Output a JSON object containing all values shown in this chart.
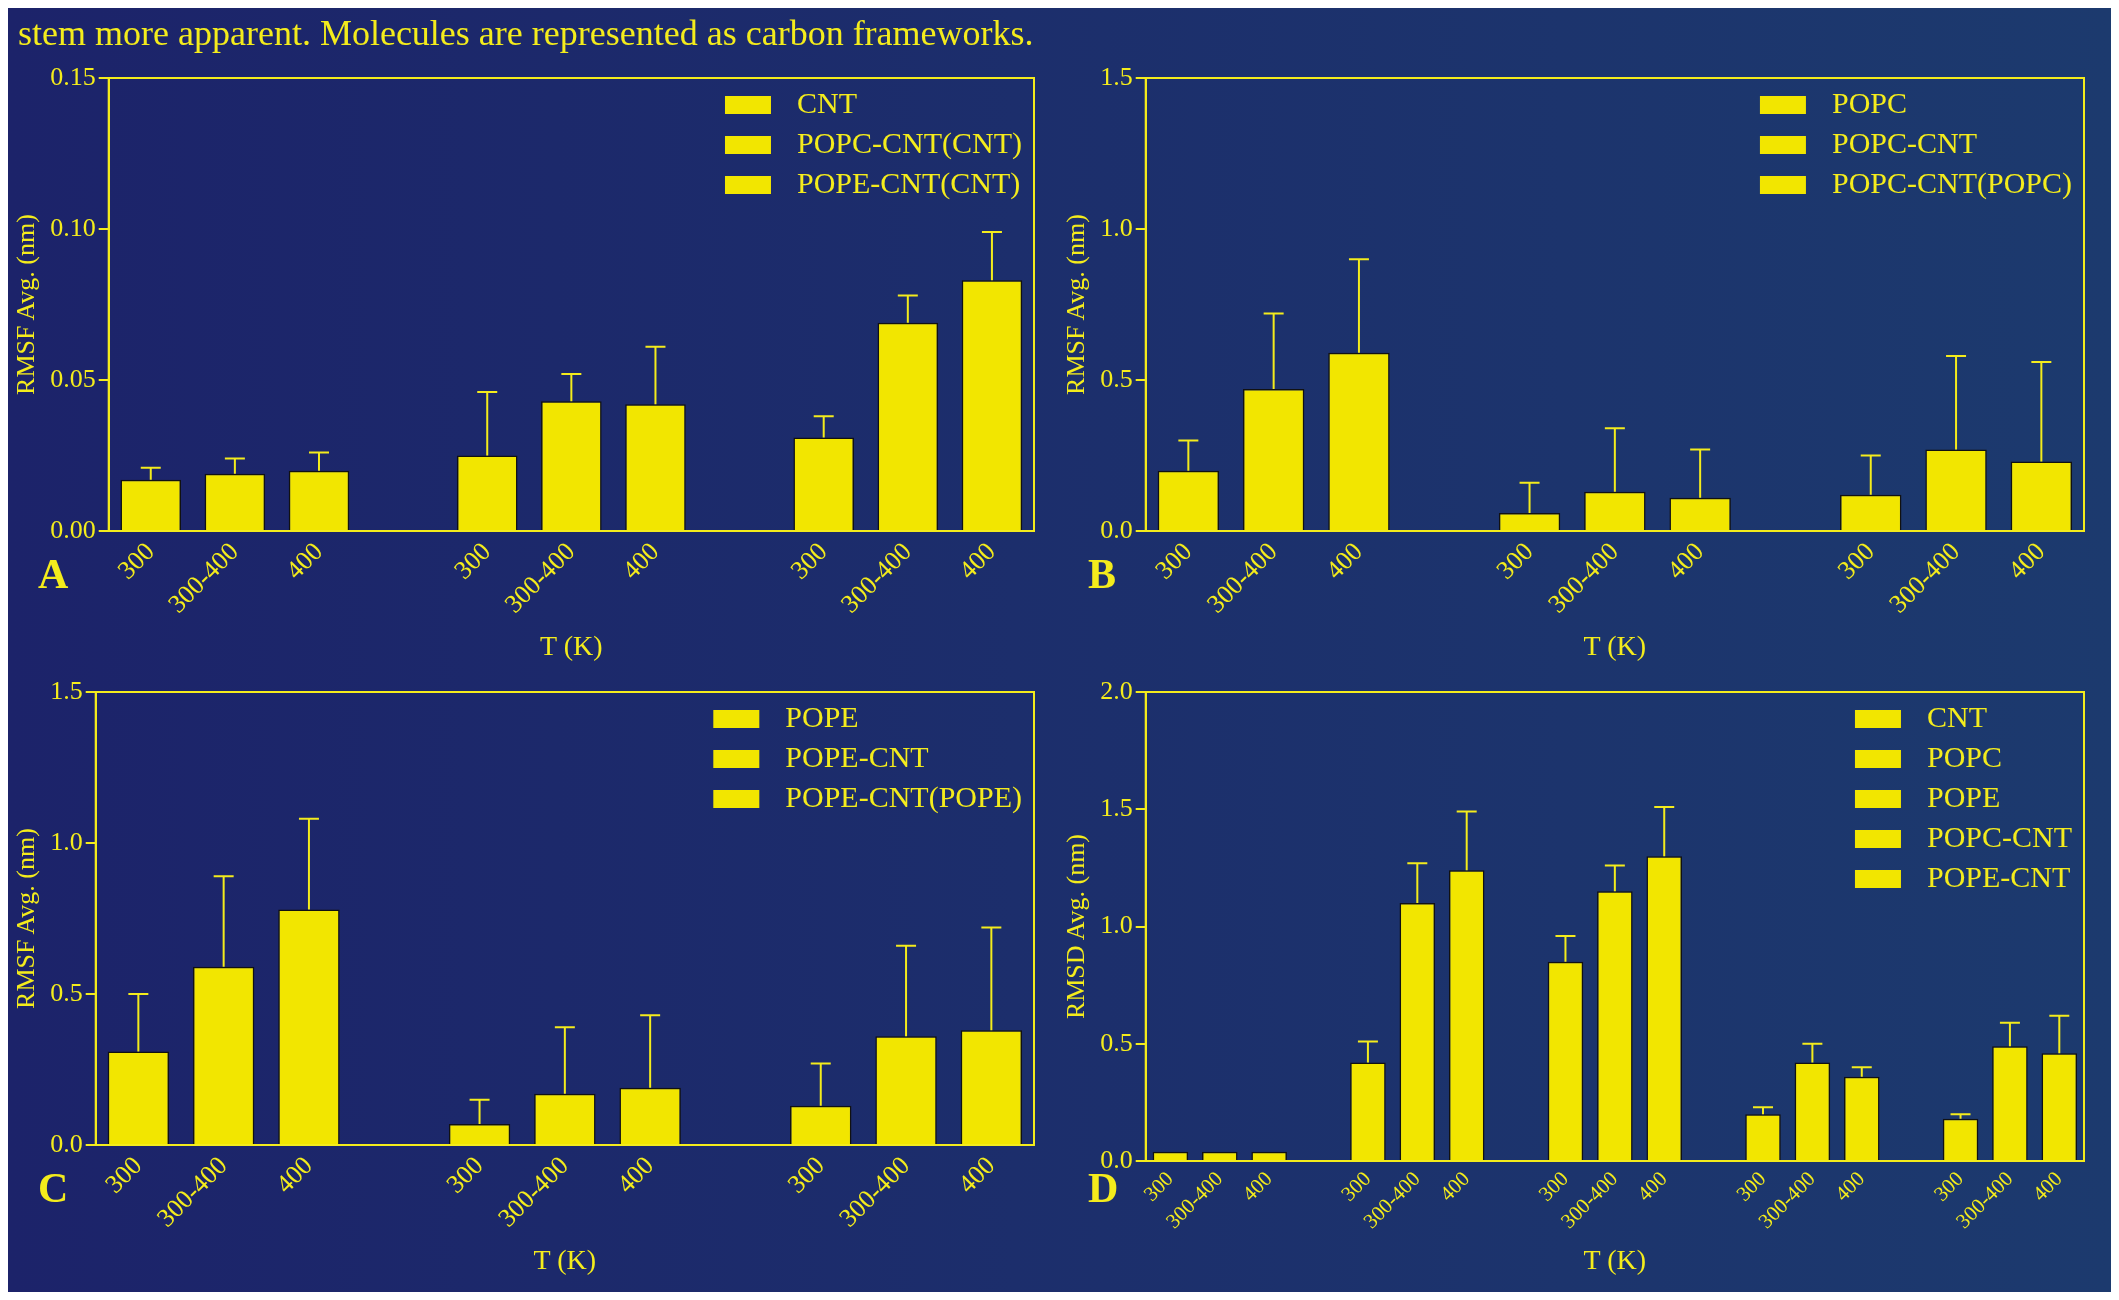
{
  "chart_data": [
    {
      "type": "bar",
      "xlabel": "T (K)",
      "ylabel": "RMSF Avg. (nm)",
      "annotations": [
        "A",
        "stem more apparent. Molecules are represented as carbon frameworks."
      ],
      "categories": [
        "300",
        "300-400",
        "400",
        null,
        "300",
        "300-400",
        "400",
        null,
        "300",
        "300-400",
        "400"
      ],
      "series": [
        {
          "name": "CNT",
          "color": "#f2e600",
          "values": [
            0.017,
            0.019,
            0.02,
            null,
            null,
            null,
            null,
            null,
            null,
            null,
            null
          ],
          "errors": [
            [
              0.017,
              0.021
            ],
            [
              0.019,
              0.024
            ],
            [
              0.02,
              0.026
            ],
            null,
            null,
            null,
            null,
            null,
            null,
            null,
            null
          ]
        },
        {
          "name": "POPC-CNT(CNT)",
          "color": "#f2e600",
          "values": [
            null,
            null,
            null,
            null,
            0.025,
            0.043,
            0.042,
            null,
            null,
            null,
            null
          ],
          "errors": [
            null,
            null,
            null,
            null,
            [
              0.025,
              0.046
            ],
            [
              0.043,
              0.052
            ],
            [
              0.042,
              0.061
            ],
            null,
            null,
            null,
            null
          ]
        },
        {
          "name": "POPE-CNT(CNT)",
          "color": "#f2e600",
          "values": [
            null,
            null,
            null,
            null,
            null,
            null,
            null,
            null,
            0.031,
            0.069,
            0.083
          ],
          "errors": [
            null,
            null,
            null,
            null,
            null,
            null,
            null,
            null,
            [
              0.031,
              0.038
            ],
            [
              0.069,
              0.078
            ],
            [
              0.083,
              0.099
            ]
          ]
        }
      ],
      "ylim": [
        0,
        0.15
      ],
      "yticks": [
        {
          "value": 0,
          "label": "0.00"
        },
        0.05,
        {
          "value": 0.1,
          "label": "0.10"
        },
        0.15
      ],
      "grid": false,
      "legend": "top right"
    },
    {
      "type": "bar",
      "xlabel": "T (K)",
      "ylabel": "RMSF Avg. (nm)",
      "annotations": [
        "B"
      ],
      "categories": [
        "300",
        "300-400",
        "400",
        null,
        "300",
        "300-400",
        "400",
        null,
        "300",
        "300-400",
        "400"
      ],
      "series": [
        {
          "name": "POPC",
          "color": "#f2e600",
          "values": [
            0.2,
            0.47,
            0.59,
            null,
            null,
            null,
            null,
            null,
            null,
            null,
            null
          ],
          "errors": [
            [
              0.2,
              0.3
            ],
            [
              0.47,
              0.72
            ],
            [
              0.59,
              0.9
            ],
            null,
            null,
            null,
            null,
            null,
            null,
            null,
            null
          ]
        },
        {
          "name": "POPC-CNT",
          "color": "#f2e600",
          "values": [
            null,
            null,
            null,
            null,
            0.06,
            0.13,
            0.11,
            null,
            null,
            null,
            null
          ],
          "errors": [
            null,
            null,
            null,
            null,
            [
              0.06,
              0.16
            ],
            [
              0.13,
              0.34
            ],
            [
              0.11,
              0.27
            ],
            null,
            null,
            null,
            null
          ]
        },
        {
          "name": "POPC-CNT(POPC)",
          "color": "#f2e600",
          "values": [
            null,
            null,
            null,
            null,
            null,
            null,
            null,
            null,
            0.12,
            0.27,
            0.23
          ],
          "errors": [
            null,
            null,
            null,
            null,
            null,
            null,
            null,
            null,
            [
              0.12,
              0.25
            ],
            [
              0.27,
              0.58
            ],
            [
              0.23,
              0.56
            ]
          ]
        }
      ],
      "ylim": [
        0,
        1.5
      ],
      "yticks": [
        {
          "value": 0,
          "label": "0.0"
        },
        0.5,
        {
          "value": 1,
          "label": "1.0"
        },
        1.5
      ],
      "grid": false,
      "legend": "top right"
    },
    {
      "type": "bar",
      "xlabel": "T (K)",
      "ylabel": "RMSF Avg. (nm)",
      "annotations": [
        "C"
      ],
      "categories": [
        "300",
        "300-400",
        "400",
        null,
        "300",
        "300-400",
        "400",
        null,
        "300",
        "300-400",
        "400"
      ],
      "series": [
        {
          "name": "POPE",
          "color": "#f2e600",
          "values": [
            0.31,
            0.59,
            0.78,
            null,
            null,
            null,
            null,
            null,
            null,
            null,
            null
          ],
          "errors": [
            [
              0.31,
              0.5
            ],
            [
              0.59,
              0.89
            ],
            [
              0.78,
              1.08
            ],
            null,
            null,
            null,
            null,
            null,
            null,
            null,
            null
          ]
        },
        {
          "name": "POPE-CNT",
          "color": "#f2e600",
          "values": [
            null,
            null,
            null,
            null,
            0.07,
            0.17,
            0.19,
            null,
            null,
            null,
            null
          ],
          "errors": [
            null,
            null,
            null,
            null,
            [
              0.07,
              0.15
            ],
            [
              0.17,
              0.39
            ],
            [
              0.19,
              0.43
            ],
            null,
            null,
            null,
            null
          ]
        },
        {
          "name": "POPE-CNT(POPE)",
          "color": "#f2e600",
          "values": [
            null,
            null,
            null,
            null,
            null,
            null,
            null,
            null,
            0.13,
            0.36,
            0.38
          ],
          "errors": [
            null,
            null,
            null,
            null,
            null,
            null,
            null,
            null,
            [
              0.13,
              0.27
            ],
            [
              0.36,
              0.66
            ],
            [
              0.38,
              0.72
            ]
          ]
        }
      ],
      "ylim": [
        0,
        1.5
      ],
      "yticks": [
        {
          "value": 0,
          "label": "0.0"
        },
        0.5,
        {
          "value": 1,
          "label": "1.0"
        },
        1.5
      ],
      "grid": false,
      "legend": "top right"
    },
    {
      "type": "bar",
      "xlabel": "T (K)",
      "ylabel": "RMSD Avg. (nm)",
      "annotations": [
        "D"
      ],
      "categories": [
        "300",
        "300-400",
        "400",
        null,
        "300",
        "300-400",
        "400",
        null,
        "300",
        "300-400",
        "400",
        null,
        "300",
        "300-400",
        "400",
        null,
        "300",
        "300-400",
        "400"
      ],
      "series": [
        {
          "name": "CNT",
          "color": "#f2e600",
          "values": [
            0.04,
            0.04,
            0.04,
            null,
            null,
            null,
            null,
            null,
            null,
            null,
            null,
            null,
            null,
            null,
            null,
            null,
            null,
            null,
            null
          ]
        },
        {
          "name": "POPC",
          "color": "#f2e600",
          "values": [
            null,
            null,
            null,
            null,
            0.42,
            1.1,
            1.24,
            null,
            null,
            null,
            null,
            null,
            null,
            null,
            null,
            null,
            null,
            null,
            null
          ],
          "errors": [
            null,
            null,
            null,
            null,
            [
              0.42,
              0.51
            ],
            [
              1.1,
              1.27
            ],
            [
              1.24,
              1.49
            ],
            null,
            null,
            null,
            null,
            null,
            null,
            null,
            null,
            null,
            null,
            null,
            null
          ]
        },
        {
          "name": "POPE",
          "color": "#f2e600",
          "values": [
            null,
            null,
            null,
            null,
            null,
            null,
            null,
            null,
            0.85,
            1.15,
            1.3,
            null,
            null,
            null,
            null,
            null,
            null,
            null,
            null
          ],
          "errors": [
            null,
            null,
            null,
            null,
            null,
            null,
            null,
            null,
            [
              0.85,
              0.96
            ],
            [
              1.15,
              1.26
            ],
            [
              1.3,
              1.51
            ],
            null,
            null,
            null,
            null,
            null,
            null,
            null,
            null
          ]
        },
        {
          "name": "POPC-CNT",
          "color": "#f2e600",
          "values": [
            null,
            null,
            null,
            null,
            null,
            null,
            null,
            null,
            null,
            null,
            null,
            null,
            0.2,
            0.42,
            0.36,
            null,
            null,
            null,
            null
          ],
          "errors": [
            null,
            null,
            null,
            null,
            null,
            null,
            null,
            null,
            null,
            null,
            null,
            null,
            [
              0.2,
              0.23
            ],
            [
              0.42,
              0.5
            ],
            [
              0.36,
              0.4
            ],
            null,
            null,
            null,
            null
          ]
        },
        {
          "name": "POPE-CNT",
          "color": "#f2e600",
          "values": [
            null,
            null,
            null,
            null,
            null,
            null,
            null,
            null,
            null,
            null,
            null,
            null,
            null,
            null,
            null,
            null,
            0.18,
            0.49,
            0.46
          ],
          "errors": [
            null,
            null,
            null,
            null,
            null,
            null,
            null,
            null,
            null,
            null,
            null,
            null,
            null,
            null,
            null,
            null,
            [
              0.18,
              0.2
            ],
            [
              0.49,
              0.59
            ],
            [
              0.46,
              0.62
            ]
          ]
        }
      ],
      "ylim": [
        0,
        2.0
      ],
      "yticks": [
        {
          "value": 0,
          "label": "0.0"
        },
        0.5,
        {
          "value": 1,
          "label": "1.0"
        },
        1.5,
        {
          "value": 2,
          "label": "2.0"
        }
      ],
      "grid": false,
      "legend": "top right"
    }
  ]
}
